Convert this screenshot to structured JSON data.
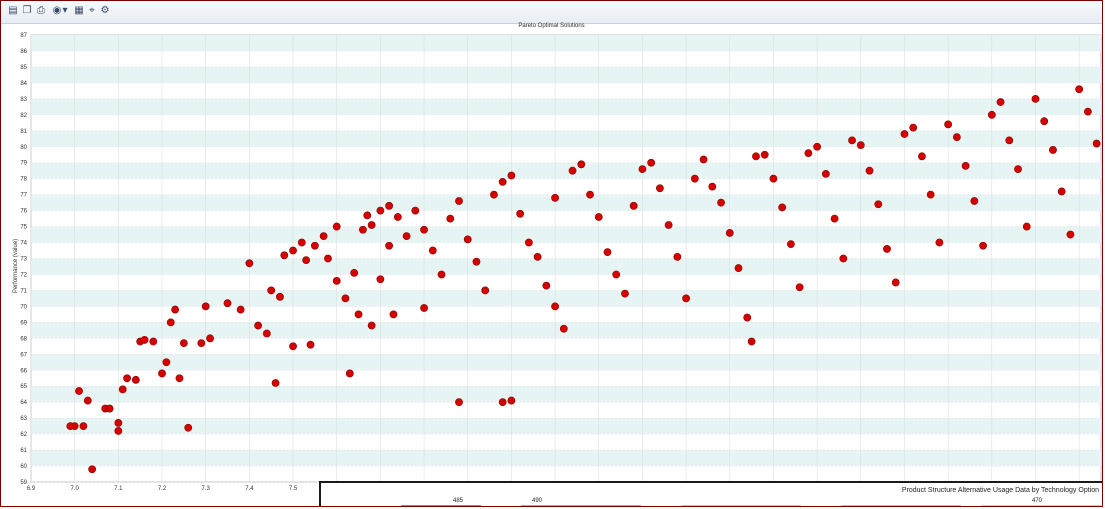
{
  "toolbar": {
    "icons": [
      "save-icon",
      "copy-icon",
      "print-icon",
      "palette-icon",
      "dropdown-arrow-icon",
      "export-icon",
      "zoom-icon",
      "properties-icon"
    ]
  },
  "chart_data": {
    "type": "scatter",
    "title": "Pareto Optimal Solutions",
    "xlabel": "",
    "ylabel": "Performance (value)",
    "xlim": [
      6.9,
      9.35
    ],
    "ylim": [
      59,
      87
    ],
    "x_ticks": [
      "6.9",
      "7.0",
      "7.1",
      "7.2",
      "7.3",
      "7.4",
      "7.5"
    ],
    "y_ticks": [
      "59",
      "60",
      "61",
      "62",
      "63",
      "64",
      "65",
      "66",
      "67",
      "68",
      "69",
      "70",
      "71",
      "72",
      "73",
      "74",
      "75",
      "76",
      "77",
      "78",
      "79",
      "80",
      "81",
      "82",
      "83",
      "84",
      "85",
      "86",
      "87"
    ],
    "grid": true,
    "color": "#d40000",
    "points": [
      [
        7.0,
        62.5
      ],
      [
        7.02,
        62.5
      ],
      [
        6.99,
        62.5
      ],
      [
        7.01,
        64.7
      ],
      [
        7.03,
        64.1
      ],
      [
        7.04,
        59.8
      ],
      [
        7.07,
        63.6
      ],
      [
        7.08,
        63.6
      ],
      [
        7.1,
        62.7
      ],
      [
        7.1,
        62.2
      ],
      [
        7.11,
        64.8
      ],
      [
        7.12,
        65.5
      ],
      [
        7.14,
        65.4
      ],
      [
        7.15,
        67.8
      ],
      [
        7.16,
        67.9
      ],
      [
        7.18,
        67.8
      ],
      [
        7.2,
        65.8
      ],
      [
        7.21,
        66.5
      ],
      [
        7.22,
        69.0
      ],
      [
        7.23,
        69.8
      ],
      [
        7.24,
        65.5
      ],
      [
        7.25,
        67.7
      ],
      [
        7.26,
        62.4
      ],
      [
        7.29,
        67.7
      ],
      [
        7.31,
        68.0
      ],
      [
        7.3,
        70.0
      ],
      [
        7.35,
        70.2
      ],
      [
        7.38,
        69.8
      ],
      [
        7.4,
        72.7
      ],
      [
        7.42,
        68.8
      ],
      [
        7.44,
        68.3
      ],
      [
        7.45,
        71.0
      ],
      [
        7.46,
        65.2
      ],
      [
        7.47,
        70.6
      ],
      [
        7.48,
        73.2
      ],
      [
        7.5,
        73.5
      ],
      [
        7.52,
        74.0
      ],
      [
        7.53,
        72.9
      ],
      [
        7.55,
        73.8
      ],
      [
        7.5,
        67.5
      ],
      [
        7.54,
        67.6
      ],
      [
        7.57,
        74.4
      ],
      [
        7.58,
        73.0
      ],
      [
        7.6,
        75.0
      ],
      [
        7.6,
        71.6
      ],
      [
        7.62,
        70.5
      ],
      [
        7.64,
        72.1
      ],
      [
        7.65,
        69.5
      ],
      [
        7.63,
        65.8
      ],
      [
        7.66,
        74.8
      ],
      [
        7.67,
        75.7
      ],
      [
        7.68,
        75.1
      ],
      [
        7.7,
        76.0
      ],
      [
        7.72,
        76.3
      ],
      [
        7.74,
        75.6
      ],
      [
        7.76,
        74.4
      ],
      [
        7.72,
        73.8
      ],
      [
        7.7,
        71.7
      ],
      [
        7.68,
        68.8
      ],
      [
        7.73,
        69.5
      ],
      [
        7.78,
        76.0
      ],
      [
        7.8,
        74.8
      ],
      [
        7.82,
        73.5
      ],
      [
        7.84,
        72.0
      ],
      [
        7.8,
        69.9
      ],
      [
        7.86,
        75.5
      ],
      [
        7.88,
        76.6
      ],
      [
        7.9,
        74.2
      ],
      [
        7.92,
        72.8
      ],
      [
        7.94,
        71.0
      ],
      [
        7.96,
        77.0
      ],
      [
        7.98,
        77.8
      ],
      [
        8.0,
        78.2
      ],
      [
        8.02,
        75.8
      ],
      [
        7.88,
        64.0
      ],
      [
        7.98,
        64.0
      ],
      [
        8.0,
        64.1
      ],
      [
        8.04,
        74.0
      ],
      [
        8.06,
        73.1
      ],
      [
        8.08,
        71.3
      ],
      [
        8.1,
        70.0
      ],
      [
        8.12,
        68.6
      ],
      [
        8.1,
        76.8
      ],
      [
        8.14,
        78.5
      ],
      [
        8.16,
        78.9
      ],
      [
        8.18,
        77.0
      ],
      [
        8.2,
        75.6
      ],
      [
        8.22,
        73.4
      ],
      [
        8.24,
        72.0
      ],
      [
        8.26,
        70.8
      ],
      [
        8.28,
        76.3
      ],
      [
        8.3,
        78.6
      ],
      [
        8.32,
        79.0
      ],
      [
        8.34,
        77.4
      ],
      [
        8.36,
        75.1
      ],
      [
        8.38,
        73.1
      ],
      [
        8.4,
        70.5
      ],
      [
        8.42,
        78.0
      ],
      [
        8.44,
        79.2
      ],
      [
        8.46,
        77.5
      ],
      [
        8.48,
        76.5
      ],
      [
        8.5,
        74.6
      ],
      [
        8.52,
        72.4
      ],
      [
        8.54,
        69.3
      ],
      [
        8.55,
        67.8
      ],
      [
        8.56,
        79.4
      ],
      [
        8.58,
        79.5
      ],
      [
        8.6,
        78.0
      ],
      [
        8.62,
        76.2
      ],
      [
        8.64,
        73.9
      ],
      [
        8.66,
        71.2
      ],
      [
        8.68,
        79.6
      ],
      [
        8.7,
        80.0
      ],
      [
        8.72,
        78.3
      ],
      [
        8.74,
        75.5
      ],
      [
        8.76,
        73.0
      ],
      [
        8.78,
        80.4
      ],
      [
        8.8,
        80.1
      ],
      [
        8.82,
        78.5
      ],
      [
        8.84,
        76.4
      ],
      [
        8.86,
        73.6
      ],
      [
        8.88,
        71.5
      ],
      [
        8.9,
        80.8
      ],
      [
        8.92,
        81.2
      ],
      [
        8.94,
        79.4
      ],
      [
        8.96,
        77.0
      ],
      [
        8.98,
        74.0
      ],
      [
        9.0,
        81.4
      ],
      [
        9.02,
        80.6
      ],
      [
        9.04,
        78.8
      ],
      [
        9.06,
        76.6
      ],
      [
        9.08,
        73.8
      ],
      [
        9.1,
        82.0
      ],
      [
        9.12,
        82.8
      ],
      [
        9.14,
        80.4
      ],
      [
        9.16,
        78.6
      ],
      [
        9.18,
        75.0
      ],
      [
        9.2,
        83.0
      ],
      [
        9.22,
        81.6
      ],
      [
        9.24,
        79.8
      ],
      [
        9.26,
        77.2
      ],
      [
        9.28,
        74.5
      ],
      [
        9.3,
        83.6
      ],
      [
        9.32,
        82.2
      ],
      [
        9.34,
        80.2
      ]
    ]
  },
  "overlay": {
    "title": "Product Structure Alternative Usage Data by Technology Option",
    "labels": [
      "485",
      "490",
      "470"
    ],
    "colors": [
      "#6f8fc9",
      "#d89a80",
      "#9bd0d6",
      "#a9d18e",
      "#e8c48f"
    ]
  }
}
